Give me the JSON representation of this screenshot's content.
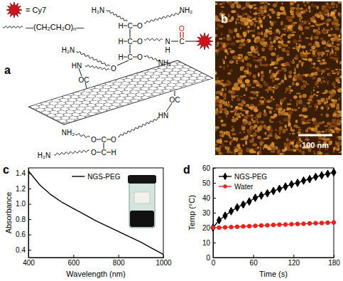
{
  "panel_labels": [
    "a",
    "b",
    "c",
    "d"
  ],
  "diagram": {
    "legend_texts": [
      "= Cy7",
      "—(CH₂CH₂O)ₙ—"
    ],
    "atom_labels": [
      "H₂N",
      "NH₂",
      "H",
      "C",
      "O",
      "H",
      "C",
      "O",
      "N",
      "H",
      "C",
      "O",
      "H",
      "C",
      "O",
      "NH₂",
      "O",
      "H₂N",
      "HN",
      "OC",
      "NH₂",
      "O",
      "C",
      "O",
      "O",
      "C",
      "H",
      "H₂N",
      "HN",
      "OC"
    ]
  },
  "image": {
    "scale_bar_label": "100 nm"
  },
  "chart_data": [
    {
      "type": "line",
      "x_label": "Wavelength (nm)",
      "y_label": "Absorbance",
      "x": [
        400,
        450,
        500,
        550,
        600,
        650,
        700,
        750,
        800,
        850,
        900,
        950,
        1000
      ],
      "series": [
        {
          "name": "NGS-PEG",
          "color": "#000000",
          "values": [
            1.43,
            1.25,
            1.12,
            1.02,
            0.94,
            0.86,
            0.78,
            0.71,
            0.64,
            0.57,
            0.5,
            0.42,
            0.34
          ]
        }
      ],
      "xlim": [
        400,
        1000
      ],
      "xticks": [
        400,
        600,
        800,
        1000
      ],
      "ylim": [
        0.3,
        1.47
      ],
      "yticks": [
        0.4,
        0.6,
        0.8,
        {
          "value": 1,
          "label": "1.0"
        },
        1.2,
        1.4
      ],
      "legend": "upper center"
    },
    {
      "type": "line",
      "x_label": "Time (s)",
      "y_label": "Temp (°C)",
      "x": [
        0,
        9,
        18,
        27,
        36,
        45,
        54,
        63,
        72,
        81,
        90,
        99,
        108,
        117,
        126,
        135,
        144,
        153,
        162,
        171,
        180
      ],
      "series": [
        {
          "name": "NGS-PEG",
          "color": "#000000",
          "marker": "diamond",
          "values": [
            20,
            25,
            28,
            31,
            33.5,
            35.5,
            37.5,
            40,
            41.5,
            43,
            44.5,
            46,
            47.5,
            49,
            50,
            51.5,
            52.5,
            54,
            55,
            56,
            57
          ]
        },
        {
          "name": "Water",
          "color": "#e8231f",
          "marker": "circle",
          "values": [
            20,
            20,
            20.2,
            20.4,
            20.6,
            20.8,
            21,
            21.2,
            21.4,
            21.6,
            21.8,
            22,
            22.1,
            22.3,
            22.5,
            22.6,
            22.8,
            23,
            23.1,
            23.3,
            23.5
          ]
        }
      ],
      "xlim": [
        0,
        180
      ],
      "xticks": [
        0,
        60,
        120,
        180
      ],
      "ylim": [
        0,
        60
      ],
      "yticks": [
        0,
        10,
        20,
        30,
        40,
        50,
        60
      ],
      "legend": "upper left"
    }
  ]
}
